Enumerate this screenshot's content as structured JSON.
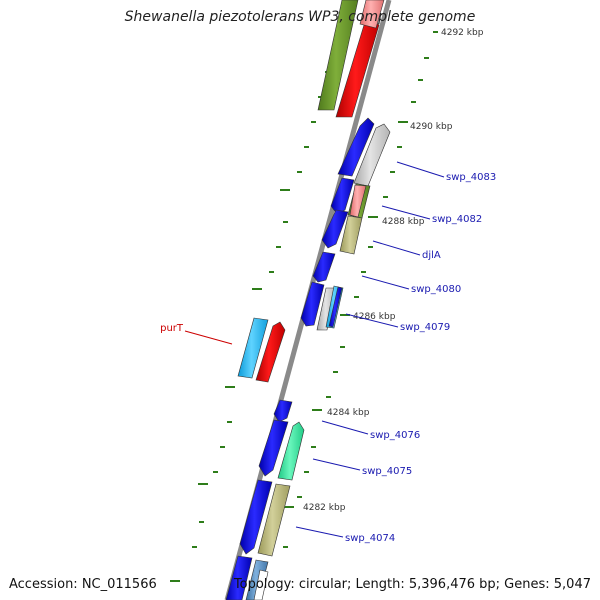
{
  "title": "Shewanella piezotolerans WP3, complete genome",
  "footer": {
    "accession": "Accession: NC_011566",
    "topology": "Topology: circular; Length: 5,396,476 bp; Genes: 5,047"
  },
  "colors": {
    "backbone": "#888888",
    "tick": "#2e7d1a",
    "label_blue": "#1a1ab0",
    "label_red": "#cc0000"
  },
  "scale_labels": [
    "4292 kbp",
    "4290 kbp",
    "4288 kbp",
    "4286 kbp",
    "4284 kbp",
    "4282 kbp"
  ],
  "gene_labels": [
    {
      "text": "swp_4083",
      "strand": "outer"
    },
    {
      "text": "swp_4082",
      "strand": "outer"
    },
    {
      "text": "djlA",
      "strand": "outer"
    },
    {
      "text": "swp_4080",
      "strand": "outer"
    },
    {
      "text": "swp_4079",
      "strand": "outer"
    },
    {
      "text": "swp_4076",
      "strand": "outer"
    },
    {
      "text": "swp_4075",
      "strand": "outer"
    },
    {
      "text": "swp_4074",
      "strand": "outer"
    },
    {
      "text": "purT",
      "strand": "inner"
    }
  ]
}
